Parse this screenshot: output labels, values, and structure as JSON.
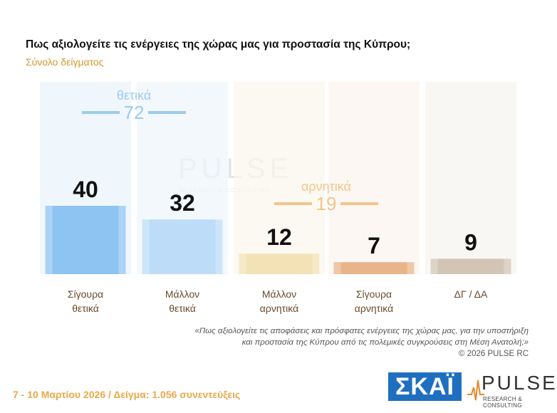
{
  "header": {
    "title": "Πως αξιολογείτε τις ενέργειες της χώρας μας για προστασία της Κύπρου;",
    "subtitle": "Σύνολο δείγματος"
  },
  "chart_data": {
    "type": "bar",
    "categories": [
      "Σίγουρα θετικά",
      "Μάλλον θετικά",
      "Μάλλον αρνητικά",
      "Σίγουρα αρνητικά",
      "ΔΓ / ΔΑ"
    ],
    "category_lines": [
      [
        "Σίγουρα",
        "θετικά"
      ],
      [
        "Μάλλον",
        "θετικά"
      ],
      [
        "Μάλλον",
        "αρνητικά"
      ],
      [
        "Σίγουρα",
        "αρνητικά"
      ],
      [
        "ΔΓ / ΔΑ"
      ]
    ],
    "values": [
      40,
      32,
      12,
      7,
      9
    ],
    "colors": [
      "#8ec4f2",
      "#bddcf7",
      "#f2e2b6",
      "#e8b48a",
      "#d2c5b6"
    ],
    "groups": [
      {
        "label": "θετικά",
        "total": "72",
        "color": "#9ccbee"
      },
      {
        "label": "αρνητικά",
        "total": "19",
        "color": "#f2c58c"
      }
    ]
  },
  "footnote": {
    "line1": "«Πως αξιολογείτε τις αποφάσεις και πρόσφατες ενέργειες της χώρας μας, για την υποστήριξη",
    "line2": "και προστασία της Κύπρου από τις πολεμικές συγκρούσεις στη Μέση Ανατολή;»",
    "copyright": "©  2026  PULSE RC"
  },
  "fieldwork": "7 - 10  Μαρτίου 2026  /  Δείγμα:  1.056 συνεντεύξεις",
  "logos": {
    "skai": "ΣΚΑΪ",
    "pulse": "PULSE",
    "pulse_tag": "RESEARCH & CONSULTING"
  }
}
